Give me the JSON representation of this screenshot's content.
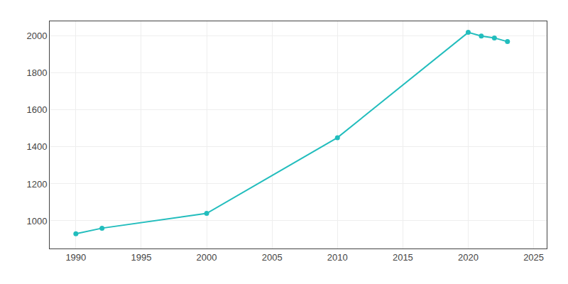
{
  "chart_data": {
    "type": "line",
    "x": [
      1990,
      1992,
      2000,
      2010,
      2020,
      2021,
      2022,
      2023
    ],
    "values": [
      930,
      960,
      1040,
      1450,
      2020,
      2000,
      1990,
      1970
    ],
    "color": "#22BDBD",
    "marker": "circle",
    "xlim": [
      1988,
      2026
    ],
    "ylim": [
      850,
      2080
    ],
    "xticks": [
      1990,
      1995,
      2000,
      2005,
      2010,
      2015,
      2020,
      2025
    ],
    "yticks": [
      1000,
      1200,
      1400,
      1600,
      1800,
      2000
    ],
    "grid": true
  }
}
